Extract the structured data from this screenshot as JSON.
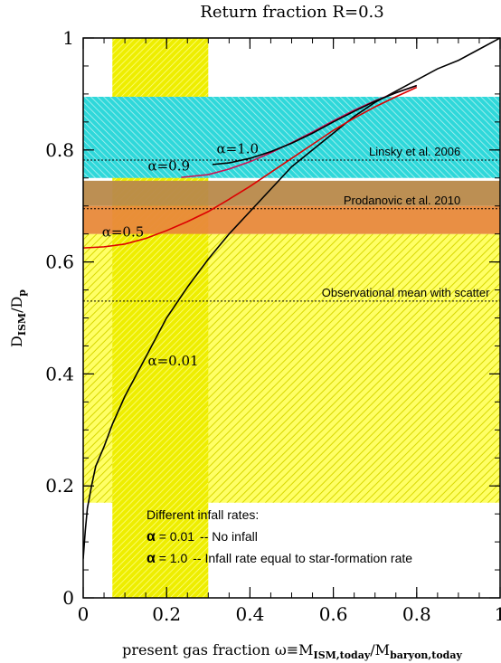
{
  "chart_data": {
    "type": "line",
    "title": "Return fraction R=0.3",
    "xlabel": {
      "main": "present gas fraction ω≡M",
      "sub1": "ISM,today",
      "slash": "/M",
      "sub2": "baryon,today"
    },
    "ylabel": {
      "main": "D",
      "sub1": "ISM",
      "slash": "/D",
      "sub2": "p"
    },
    "xlim": [
      0,
      1
    ],
    "ylim": [
      0,
      1
    ],
    "xticks": [
      {
        "v": 0,
        "label": "0"
      },
      {
        "v": 0.2,
        "label": "0.2"
      },
      {
        "v": 0.4,
        "label": "0.4"
      },
      {
        "v": 0.6,
        "label": "0.6"
      },
      {
        "v": 0.8,
        "label": "0.8"
      },
      {
        "v": 1.0,
        "label": "1"
      }
    ],
    "yticks": [
      {
        "v": 0,
        "label": "0"
      },
      {
        "v": 0.2,
        "label": "0.2"
      },
      {
        "v": 0.4,
        "label": "0.4"
      },
      {
        "v": 0.6,
        "label": "0.6"
      },
      {
        "v": 0.8,
        "label": "0.8"
      },
      {
        "v": 1.0,
        "label": "1"
      }
    ],
    "bands": [
      {
        "name": "yellow-wide-band",
        "orient": "h",
        "range": [
          0.17,
          0.65
        ],
        "color": "#ffff44"
      },
      {
        "name": "yellow-gas-band",
        "orient": "v",
        "range": [
          0.07,
          0.3
        ],
        "color": "#f2f200"
      },
      {
        "name": "cyan-band",
        "orient": "h",
        "range": [
          0.75,
          0.895
        ],
        "color": "#22d3d6"
      },
      {
        "name": "brown-band",
        "orient": "h",
        "range": [
          0.7,
          0.745
        ],
        "color": "#b8894a"
      },
      {
        "name": "orange-band",
        "orient": "h",
        "range": [
          0.65,
          0.7
        ],
        "color": "#e8893a"
      }
    ],
    "reference_lines": [
      {
        "name": "linsky-line",
        "y": 0.782,
        "label": "Linsky et al. 2006",
        "label_x": 0.905
      },
      {
        "name": "prodanovic-line",
        "y": 0.695,
        "label": "Prodanovic et al. 2010",
        "label_x": 0.905
      },
      {
        "name": "mean-line",
        "y": 0.53,
        "label": "Observational mean with scatter",
        "label_x": 0.975
      }
    ],
    "series": [
      {
        "name": "α=0.01",
        "color": "#000000",
        "label_x": 0.155,
        "label_y": 0.415,
        "x": [
          0,
          0.005,
          0.01,
          0.02,
          0.03,
          0.05,
          0.07,
          0.1,
          0.15,
          0.2,
          0.25,
          0.3,
          0.35,
          0.4,
          0.45,
          0.5,
          0.55,
          0.6,
          0.65,
          0.7,
          0.75,
          0.8,
          0.85,
          0.9,
          0.95,
          1.0
        ],
        "y": [
          0.07,
          0.12,
          0.16,
          0.2,
          0.235,
          0.27,
          0.31,
          0.36,
          0.43,
          0.5,
          0.555,
          0.605,
          0.65,
          0.69,
          0.73,
          0.77,
          0.8,
          0.83,
          0.86,
          0.885,
          0.905,
          0.925,
          0.945,
          0.96,
          0.98,
          1.0
        ]
      },
      {
        "name": "α=0.5",
        "color": "#dd0000",
        "label_x": 0.045,
        "label_y": 0.645,
        "x": [
          0,
          0.05,
          0.1,
          0.15,
          0.2,
          0.25,
          0.3,
          0.35,
          0.4,
          0.45,
          0.5,
          0.55,
          0.6,
          0.65,
          0.7,
          0.75,
          0.8
        ],
        "y": [
          0.625,
          0.627,
          0.632,
          0.642,
          0.656,
          0.672,
          0.69,
          0.712,
          0.735,
          0.76,
          0.785,
          0.81,
          0.835,
          0.857,
          0.877,
          0.895,
          0.912
        ]
      },
      {
        "name": "α=0.9",
        "color": "#cc1155",
        "label_x": 0.155,
        "label_y": 0.763,
        "x": [
          0.235,
          0.3,
          0.35,
          0.4,
          0.45,
          0.5,
          0.55,
          0.6,
          0.65,
          0.7,
          0.75,
          0.8
        ],
        "y": [
          0.751,
          0.756,
          0.766,
          0.779,
          0.795,
          0.813,
          0.832,
          0.852,
          0.871,
          0.888,
          0.902,
          0.915
        ]
      },
      {
        "name": "α=1.0",
        "color": "#000000",
        "label_x": 0.32,
        "label_y": 0.794,
        "x": [
          0.31,
          0.35,
          0.4,
          0.45,
          0.5,
          0.55,
          0.6,
          0.65,
          0.7,
          0.75,
          0.8
        ],
        "y": [
          0.774,
          0.777,
          0.785,
          0.797,
          0.812,
          0.83,
          0.85,
          0.869,
          0.887,
          0.902,
          0.915
        ]
      }
    ],
    "legend": {
      "title": "Different infall rates:",
      "items": [
        {
          "sym": "α",
          "val": " = 0.01",
          "desc": "-- No infall"
        },
        {
          "sym": "α",
          "val": " = 1.0",
          "desc": "-- Infall rate equal to star-formation rate"
        }
      ]
    }
  }
}
